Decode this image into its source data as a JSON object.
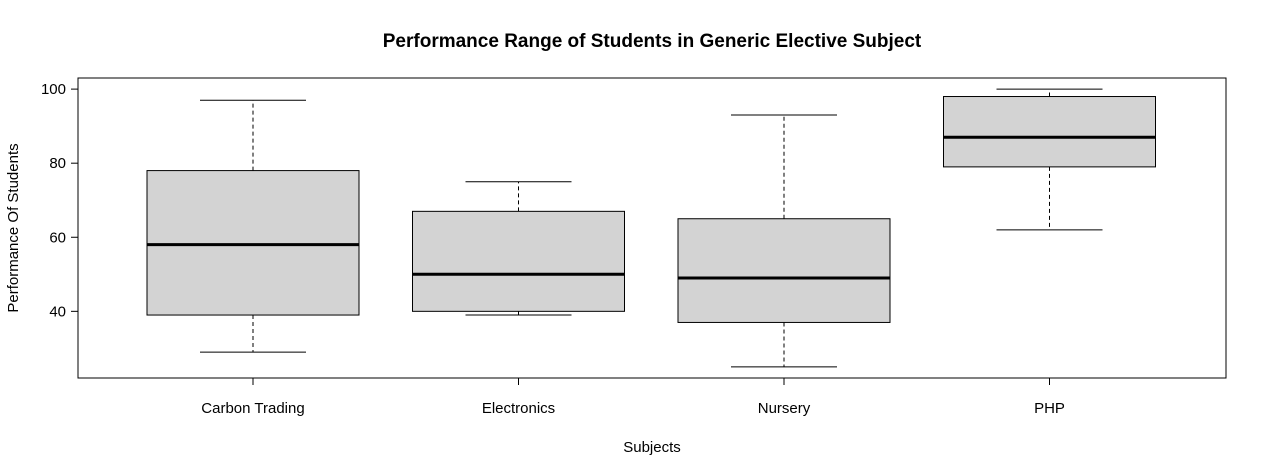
{
  "chart_data": {
    "type": "boxplot",
    "title": "Performance Range of Students in Generic Elective Subject",
    "xlabel": "Subjects",
    "ylabel": "Performance Of Students",
    "ylim": [
      22,
      103
    ],
    "yticks": [
      40,
      60,
      80,
      100
    ],
    "categories": [
      "Carbon Trading",
      "Electronics",
      "Nursery",
      "PHP"
    ],
    "boxes": [
      {
        "min": 29,
        "q1": 39,
        "median": 58,
        "q3": 78,
        "max": 97
      },
      {
        "min": 39,
        "q1": 40,
        "median": 50,
        "q3": 67,
        "max": 75
      },
      {
        "min": 25,
        "q1": 37,
        "median": 49,
        "q3": 65,
        "max": 93
      },
      {
        "min": 62,
        "q1": 79,
        "median": 87,
        "q3": 98,
        "max": 100
      }
    ],
    "box_fill": "#d3d3d3",
    "grid": false
  }
}
